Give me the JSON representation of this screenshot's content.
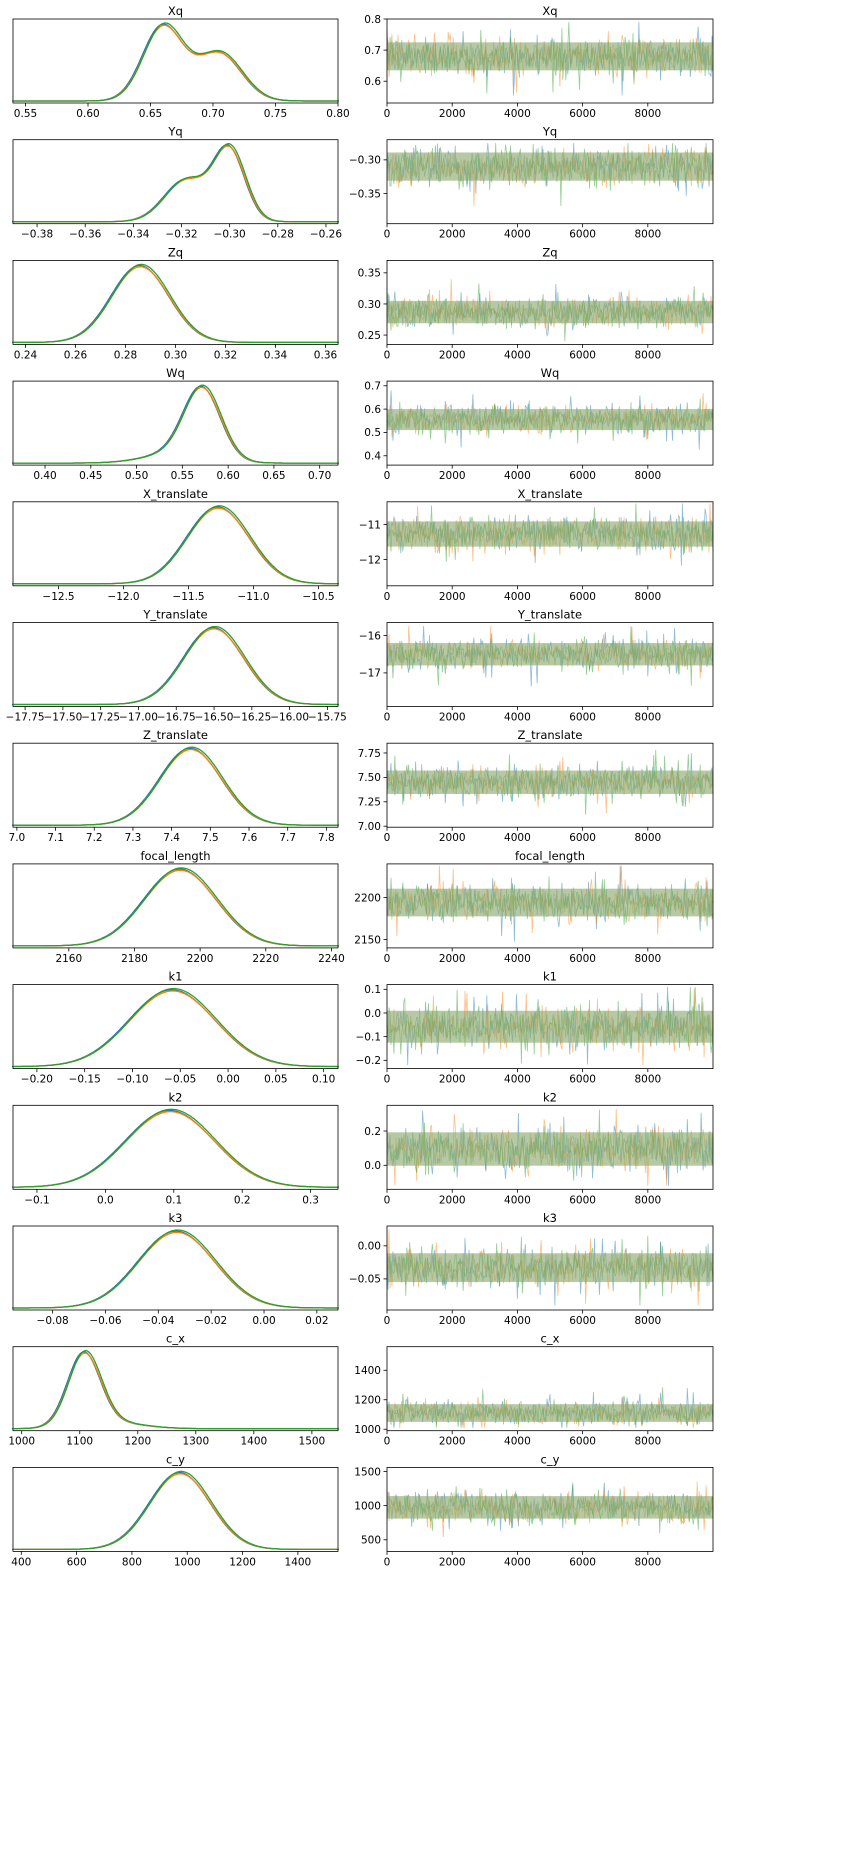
{
  "figure": {
    "title": ""
  },
  "colors": {
    "series": [
      "#1f77b4",
      "#ff7f0e",
      "#2ca02c"
    ],
    "trace_blend": "#8fac73",
    "axes": "#000000"
  },
  "chart_data": [
    {
      "type": "line",
      "name": "Xq",
      "density": {
        "xlim": [
          0.54,
          0.8
        ],
        "xticks": [
          0.55,
          0.6,
          0.65,
          0.7,
          0.75,
          0.8
        ],
        "xticklabels": [
          "0.55",
          "0.60",
          "0.65",
          "0.70",
          "0.75",
          "0.80"
        ],
        "components": [
          {
            "m": 0.66,
            "s": 0.016,
            "w": 0.58
          },
          {
            "m": 0.705,
            "s": 0.018,
            "w": 0.42
          }
        ]
      },
      "trace": {
        "ylim": [
          0.53,
          0.8
        ],
        "yticks": [
          0.6,
          0.7,
          0.8
        ],
        "yticklabels": [
          "0.6",
          "0.7",
          "0.8"
        ],
        "center": 0.68,
        "spread": 0.03,
        "min_obs": 0.55,
        "max_obs": 0.79
      }
    },
    {
      "type": "line",
      "name": "Yq",
      "density": {
        "xlim": [
          -0.39,
          -0.255
        ],
        "xticks": [
          -0.38,
          -0.36,
          -0.34,
          -0.32,
          -0.3,
          -0.28,
          -0.26
        ],
        "xticklabels": [
          "−0.38",
          "−0.36",
          "−0.34",
          "−0.32",
          "−0.30",
          "−0.28",
          "−0.26"
        ],
        "components": [
          {
            "m": -0.3,
            "s": 0.0065,
            "w": 0.55
          },
          {
            "m": -0.318,
            "s": 0.009,
            "w": 0.45
          }
        ]
      },
      "trace": {
        "ylim": [
          -0.395,
          -0.27
        ],
        "yticks": [
          -0.35,
          -0.3
        ],
        "yticklabels": [
          "−0.35",
          "−0.30"
        ],
        "center": -0.31,
        "spread": 0.014,
        "min_obs": -0.385,
        "max_obs": -0.275
      }
    },
    {
      "type": "line",
      "name": "Zq",
      "density": {
        "xlim": [
          0.235,
          0.365
        ],
        "xticks": [
          0.24,
          0.26,
          0.28,
          0.3,
          0.32,
          0.34,
          0.36
        ],
        "xticklabels": [
          "0.24",
          "0.26",
          "0.28",
          "0.30",
          "0.32",
          "0.34",
          "0.36"
        ],
        "components": [
          {
            "m": 0.286,
            "s": 0.0115,
            "w": 1
          }
        ]
      },
      "trace": {
        "ylim": [
          0.235,
          0.37
        ],
        "yticks": [
          0.25,
          0.3,
          0.35
        ],
        "yticklabels": [
          "0.25",
          "0.30",
          "0.35"
        ],
        "center": 0.287,
        "spread": 0.012,
        "min_obs": 0.24,
        "max_obs": 0.36
      }
    },
    {
      "type": "line",
      "name": "Wq",
      "density": {
        "xlim": [
          0.365,
          0.72
        ],
        "xticks": [
          0.4,
          0.45,
          0.5,
          0.55,
          0.6,
          0.65,
          0.7
        ],
        "xticklabels": [
          "0.40",
          "0.45",
          "0.50",
          "0.55",
          "0.60",
          "0.65",
          "0.70"
        ],
        "components": [
          {
            "m": 0.572,
            "s": 0.02,
            "w": 0.8
          },
          {
            "m": 0.545,
            "s": 0.035,
            "w": 0.2
          }
        ]
      },
      "trace": {
        "ylim": [
          0.36,
          0.72
        ],
        "yticks": [
          0.4,
          0.5,
          0.6,
          0.7
        ],
        "yticklabels": [
          "0.4",
          "0.5",
          "0.6",
          "0.7"
        ],
        "center": 0.555,
        "spread": 0.03,
        "min_obs": 0.37,
        "max_obs": 0.7
      }
    },
    {
      "type": "line",
      "name": "X_translate",
      "density": {
        "xlim": [
          -12.85,
          -10.35
        ],
        "xticks": [
          -12.5,
          -12.0,
          -11.5,
          -11.0,
          -10.5
        ],
        "xticklabels": [
          "−12.5",
          "−12.0",
          "−11.5",
          "−11.0",
          "−10.5"
        ],
        "components": [
          {
            "m": -11.27,
            "s": 0.24,
            "w": 1
          }
        ]
      },
      "trace": {
        "ylim": [
          -12.75,
          -10.35
        ],
        "yticks": [
          -12,
          -11
        ],
        "yticklabels": [
          "−12",
          "−11"
        ],
        "center": -11.27,
        "spread": 0.24,
        "min_obs": -12.7,
        "max_obs": -10.4
      }
    },
    {
      "type": "line",
      "name": "Y_translate",
      "density": {
        "xlim": [
          -17.83,
          -15.68
        ],
        "xticks": [
          -17.75,
          -17.5,
          -17.25,
          -17.0,
          -16.75,
          -16.5,
          -16.25,
          -16.0,
          -15.75
        ],
        "xticklabels": [
          "−17.75",
          "−17.50",
          "−17.25",
          "−17.00",
          "−16.75",
          "−16.50",
          "−16.25",
          "−16.00",
          "−15.75"
        ],
        "components": [
          {
            "m": -16.5,
            "s": 0.2,
            "w": 1
          }
        ]
      },
      "trace": {
        "ylim": [
          -17.9,
          -15.65
        ],
        "yticks": [
          -17,
          -16
        ],
        "yticklabels": [
          "−17",
          "−16"
        ],
        "center": -16.5,
        "spread": 0.2,
        "min_obs": -17.8,
        "max_obs": -15.75
      }
    },
    {
      "type": "line",
      "name": "Z_translate",
      "density": {
        "xlim": [
          6.99,
          7.83
        ],
        "xticks": [
          7.0,
          7.1,
          7.2,
          7.3,
          7.4,
          7.5,
          7.6,
          7.7,
          7.8
        ],
        "xticklabels": [
          "7.0",
          "7.1",
          "7.2",
          "7.3",
          "7.4",
          "7.5",
          "7.6",
          "7.7",
          "7.8"
        ],
        "components": [
          {
            "m": 7.45,
            "s": 0.08,
            "w": 1
          }
        ]
      },
      "trace": {
        "ylim": [
          6.99,
          7.85
        ],
        "yticks": [
          7.0,
          7.25,
          7.5,
          7.75
        ],
        "yticklabels": [
          "7.00",
          "7.25",
          "7.50",
          "7.75"
        ],
        "center": 7.45,
        "spread": 0.08,
        "min_obs": 7.05,
        "max_obs": 7.82
      }
    },
    {
      "type": "line",
      "name": "focal_length",
      "density": {
        "xlim": [
          2143,
          2242
        ],
        "xticks": [
          2160,
          2180,
          2200,
          2220,
          2240
        ],
        "xticklabels": [
          "2160",
          "2180",
          "2200",
          "2220",
          "2240"
        ],
        "components": [
          {
            "m": 2194,
            "s": 11,
            "w": 1
          }
        ]
      },
      "trace": {
        "ylim": [
          2140,
          2240
        ],
        "yticks": [
          2150,
          2200
        ],
        "yticklabels": [
          "2150",
          "2200"
        ],
        "center": 2194,
        "spread": 11,
        "min_obs": 2147,
        "max_obs": 2238
      }
    },
    {
      "type": "line",
      "name": "k1",
      "density": {
        "xlim": [
          -0.225,
          0.115
        ],
        "xticks": [
          -0.2,
          -0.15,
          -0.1,
          -0.05,
          0,
          0.05,
          0.1
        ],
        "xticklabels": [
          "−0.20",
          "−0.15",
          "−0.10",
          "−0.05",
          "0.00",
          "0.05",
          "0.10"
        ],
        "components": [
          {
            "m": -0.058,
            "s": 0.045,
            "w": 1
          }
        ]
      },
      "trace": {
        "ylim": [
          -0.235,
          0.12
        ],
        "yticks": [
          -0.2,
          -0.1,
          0,
          0.1
        ],
        "yticklabels": [
          "−0.2",
          "−0.1",
          "0.0",
          "0.1"
        ],
        "center": -0.058,
        "spread": 0.045,
        "min_obs": -0.22,
        "max_obs": 0.11
      }
    },
    {
      "type": "line",
      "name": "k2",
      "density": {
        "xlim": [
          -0.135,
          0.34
        ],
        "xticks": [
          -0.1,
          0,
          0.1,
          0.2,
          0.3
        ],
        "xticklabels": [
          "−0.1",
          "0.0",
          "0.1",
          "0.2",
          "0.3"
        ],
        "components": [
          {
            "m": 0.095,
            "s": 0.065,
            "w": 1
          }
        ]
      },
      "trace": {
        "ylim": [
          -0.14,
          0.35
        ],
        "yticks": [
          0,
          0.2
        ],
        "yticklabels": [
          "0.0",
          "0.2"
        ],
        "center": 0.095,
        "spread": 0.065,
        "min_obs": -0.12,
        "max_obs": 0.33
      }
    },
    {
      "type": "line",
      "name": "k3",
      "density": {
        "xlim": [
          -0.095,
          0.028
        ],
        "xticks": [
          -0.08,
          -0.06,
          -0.04,
          -0.02,
          0,
          0.02
        ],
        "xticklabels": [
          "−0.08",
          "−0.06",
          "−0.04",
          "−0.02",
          "0.00",
          "0.02"
        ],
        "components": [
          {
            "m": -0.033,
            "s": 0.0145,
            "w": 1
          }
        ]
      },
      "trace": {
        "ylim": [
          -0.097,
          0.03
        ],
        "yticks": [
          -0.05,
          0
        ],
        "yticklabels": [
          "−0.05",
          "0.00"
        ],
        "center": -0.033,
        "spread": 0.0145,
        "min_obs": -0.09,
        "max_obs": 0.025
      }
    },
    {
      "type": "line",
      "name": "c_x",
      "density": {
        "xlim": [
          985,
          1545
        ],
        "xticks": [
          1000,
          1100,
          1200,
          1300,
          1400,
          1500
        ],
        "xticklabels": [
          "1000",
          "1100",
          "1200",
          "1300",
          "1400",
          "1500"
        ],
        "components": [
          {
            "m": 1108,
            "s": 28,
            "w": 0.85
          },
          {
            "m": 1150,
            "s": 55,
            "w": 0.15
          }
        ]
      },
      "trace": {
        "ylim": [
          990,
          1560
        ],
        "yticks": [
          1000,
          1200,
          1400
        ],
        "yticklabels": [
          "1000",
          "1200",
          "1400"
        ],
        "center": 1110,
        "spread": 40,
        "min_obs": 1010,
        "max_obs": 1520
      }
    },
    {
      "type": "line",
      "name": "c_y",
      "density": {
        "xlim": [
          370,
          1545
        ],
        "xticks": [
          400,
          600,
          800,
          1000,
          1200,
          1400
        ],
        "xticklabels": [
          "400",
          "600",
          "800",
          "1000",
          "1200",
          "1400"
        ],
        "components": [
          {
            "m": 975,
            "s": 110,
            "w": 1
          }
        ]
      },
      "trace": {
        "ylim": [
          330,
          1560
        ],
        "yticks": [
          500,
          1000,
          1500
        ],
        "yticklabels": [
          "500",
          "1000",
          "1500"
        ],
        "center": 975,
        "spread": 110,
        "min_obs": 420,
        "max_obs": 1490
      }
    }
  ],
  "trace_x": {
    "xlim": [
      0,
      9999
    ],
    "xticks": [
      0,
      2000,
      4000,
      6000,
      8000
    ],
    "xticklabels": [
      "0",
      "2000",
      "4000",
      "6000",
      "8000"
    ]
  }
}
